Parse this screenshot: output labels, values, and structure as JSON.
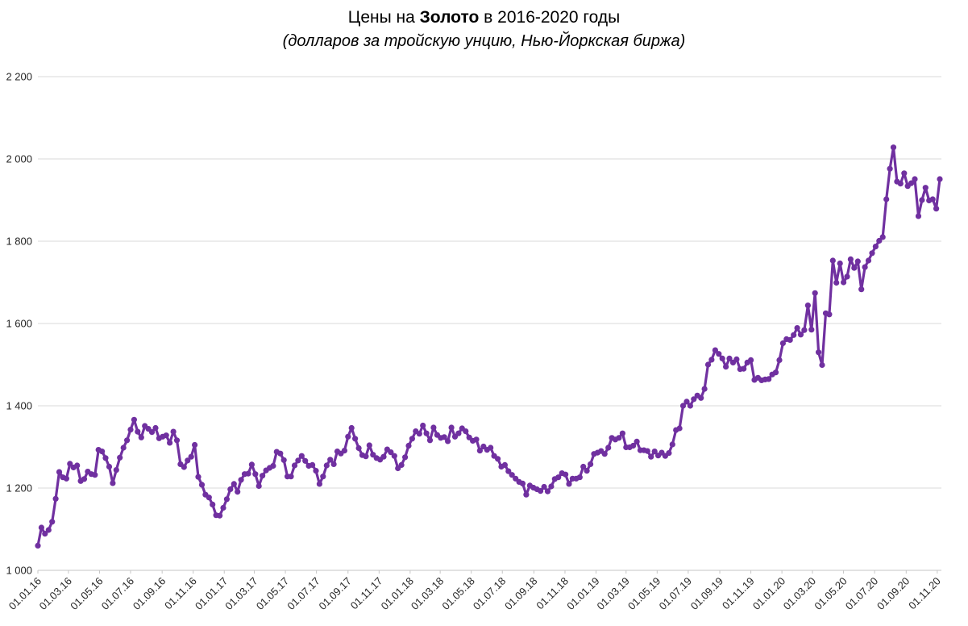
{
  "title": {
    "prefix": "Цены на ",
    "bold": "Золото",
    "suffix": " в 2016-2020 годы"
  },
  "subtitle": "(долларов за тройскую унцию, Нью-Йоркская биржа)",
  "chart_data": {
    "type": "line",
    "title": "Цены на Золото в 2016-2020 годы",
    "subtitle": "(долларов за тройскую унцию, Нью-Йоркская биржа)",
    "xlabel": "",
    "ylabel": "",
    "ylim": [
      1000,
      2200
    ],
    "ytick_step": 200,
    "ytick_labels": [
      "1 000",
      "1 200",
      "1 400",
      "1 600",
      "1 800",
      "2 000",
      "2 200"
    ],
    "x_start": "01.01.16",
    "x_frequency": "weekly",
    "x_tick_labels": [
      "01.01.16",
      "01.03.16",
      "01.05.16",
      "01.07.16",
      "01.09.16",
      "01.11.16",
      "01.01.17",
      "01.03.17",
      "01.05.17",
      "01.07.17",
      "01.09.17",
      "01.11.17",
      "01.01.18",
      "01.03.18",
      "01.05.18",
      "01.07.18",
      "01.09.18",
      "01.11.18",
      "01.01.19",
      "01.03.19",
      "01.05.19",
      "01.07.19",
      "01.09.19",
      "01.11.19",
      "01.01.20",
      "01.03.20",
      "01.05.20",
      "01.07.20",
      "01.09.20",
      "01.11.20"
    ],
    "grid": "horizontal-only",
    "legend": "none",
    "colors": {
      "line": "#7030A0",
      "grid": "#D9D9D9",
      "axis": "#C6C6C6",
      "tick_text": "#262626"
    },
    "series": [
      {
        "name": "Золото",
        "color": "#7030A0",
        "marker": "circle",
        "values": [
          1060,
          1104,
          1089,
          1098,
          1118,
          1174,
          1239,
          1226,
          1223,
          1259,
          1250,
          1255,
          1217,
          1222,
          1240,
          1234,
          1232,
          1293,
          1289,
          1273,
          1252,
          1212,
          1244,
          1274,
          1298,
          1316,
          1342,
          1366,
          1337,
          1323,
          1351,
          1344,
          1336,
          1346,
          1321,
          1325,
          1328,
          1310,
          1337,
          1316,
          1258,
          1251,
          1267,
          1276,
          1305,
          1227,
          1208,
          1184,
          1177,
          1160,
          1134,
          1133,
          1152,
          1173,
          1197,
          1210,
          1191,
          1220,
          1234,
          1235,
          1257,
          1234,
          1205,
          1230,
          1243,
          1249,
          1254,
          1288,
          1284,
          1268,
          1228,
          1228,
          1255,
          1267,
          1278,
          1266,
          1254,
          1256,
          1242,
          1210,
          1228,
          1255,
          1269,
          1258,
          1289,
          1284,
          1291,
          1325,
          1346,
          1320,
          1297,
          1280,
          1277,
          1304,
          1281,
          1273,
          1269,
          1276,
          1294,
          1287,
          1278,
          1248,
          1256,
          1275,
          1303,
          1320,
          1338,
          1332,
          1352,
          1333,
          1316,
          1347,
          1329,
          1322,
          1324,
          1314,
          1347,
          1325,
          1333,
          1345,
          1338,
          1323,
          1315,
          1318,
          1291,
          1301,
          1293,
          1298,
          1278,
          1271,
          1252,
          1256,
          1241,
          1232,
          1223,
          1215,
          1211,
          1184,
          1206,
          1201,
          1197,
          1193,
          1203,
          1192,
          1204,
          1222,
          1226,
          1236,
          1233,
          1210,
          1223,
          1223,
          1226,
          1252,
          1242,
          1258,
          1283,
          1286,
          1290,
          1283,
          1298,
          1322,
          1318,
          1322,
          1333,
          1299,
          1299,
          1303,
          1313,
          1292,
          1292,
          1290,
          1276,
          1289,
          1279,
          1286,
          1278,
          1285,
          1306,
          1341,
          1345,
          1400,
          1410,
          1400,
          1416,
          1425,
          1419,
          1441,
          1500,
          1512,
          1535,
          1526,
          1515,
          1495,
          1515,
          1505,
          1513,
          1489,
          1490,
          1505,
          1511,
          1463,
          1468,
          1462,
          1464,
          1465,
          1476,
          1481,
          1511,
          1552,
          1562,
          1560,
          1572,
          1589,
          1573,
          1584,
          1644,
          1585,
          1674,
          1530,
          1499,
          1625,
          1622,
          1753,
          1699,
          1746,
          1700,
          1714,
          1756,
          1735,
          1751,
          1683,
          1737,
          1753,
          1771,
          1787,
          1801,
          1810,
          1902,
          1976,
          2028,
          1945,
          1940,
          1965,
          1934,
          1941,
          1951,
          1861,
          1900,
          1930,
          1899,
          1902,
          1879,
          1951
        ]
      }
    ]
  }
}
